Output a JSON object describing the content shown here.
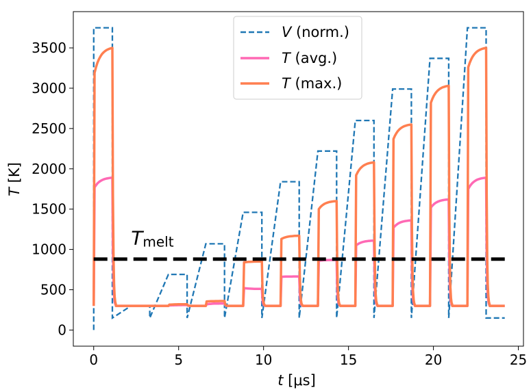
{
  "chart_data": {
    "type": "line",
    "xlabel_var": "t",
    "xlabel_unit": " [μs]",
    "ylabel_var": "T",
    "ylabel_unit": " [K]",
    "xlim": [
      -1.2,
      25.3
    ],
    "ylim": [
      -200,
      3950
    ],
    "xticks": [
      0,
      5,
      10,
      15,
      20,
      25
    ],
    "xtick_labels": [
      "0",
      "5",
      "10",
      "15",
      "20",
      "25"
    ],
    "yticks": [
      0,
      500,
      1000,
      1500,
      2000,
      2500,
      3000,
      3500
    ],
    "ytick_labels": [
      "0",
      "500",
      "1000",
      "1500",
      "2000",
      "2500",
      "3000",
      "3500"
    ],
    "annotation": {
      "main": "T",
      "sub": "melt",
      "x": 2.2,
      "y": 1060
    },
    "melt_line": {
      "y": 880,
      "x_start": 0,
      "x_end": 24.2,
      "color": "#000000"
    },
    "pulses": [
      {
        "start": 0.0,
        "end": 1.1,
        "v": 3750,
        "t_avg_start": 1770,
        "t_avg_end": 1890,
        "t_max_start": 3190,
        "t_max_end": 3500
      },
      {
        "start": 2.2,
        "end": 3.3,
        "v": 300,
        "t_avg_start": 300,
        "t_avg_end": 300,
        "t_max_start": 300,
        "t_max_end": 300
      },
      {
        "start": 4.4,
        "end": 5.5,
        "v": 690,
        "t_avg_start": 305,
        "t_avg_end": 310,
        "t_max_start": 315,
        "t_max_end": 320
      },
      {
        "start": 6.6,
        "end": 7.7,
        "v": 1070,
        "t_avg_start": 320,
        "t_avg_end": 330,
        "t_max_start": 355,
        "t_max_end": 360
      },
      {
        "start": 8.8,
        "end": 9.9,
        "v": 1460,
        "t_avg_start": 520,
        "t_avg_end": 510,
        "t_max_start": 840,
        "t_max_end": 850
      },
      {
        "start": 11.0,
        "end": 12.1,
        "v": 1840,
        "t_avg_start": 660,
        "t_avg_end": 665,
        "t_max_start": 1130,
        "t_max_end": 1170
      },
      {
        "start": 13.2,
        "end": 14.3,
        "v": 2220,
        "t_avg_start": 860,
        "t_avg_end": 870,
        "t_max_start": 1500,
        "t_max_end": 1600
      },
      {
        "start": 15.4,
        "end": 16.5,
        "v": 2600,
        "t_avg_start": 1050,
        "t_avg_end": 1110,
        "t_max_start": 1920,
        "t_max_end": 2080
      },
      {
        "start": 17.6,
        "end": 18.7,
        "v": 2990,
        "t_avg_start": 1270,
        "t_avg_end": 1360,
        "t_max_start": 2370,
        "t_max_end": 2550
      },
      {
        "start": 19.8,
        "end": 20.9,
        "v": 3370,
        "t_avg_start": 1520,
        "t_avg_end": 1620,
        "t_max_start": 2820,
        "t_max_end": 3030
      },
      {
        "start": 22.0,
        "end": 23.1,
        "v": 3750,
        "t_avg_start": 1750,
        "t_avg_end": 1890,
        "t_max_start": 3260,
        "t_max_end": 3500
      }
    ],
    "baseline": {
      "v_off": 150,
      "t_off": 300,
      "x_end": 24.2
    },
    "series": [
      {
        "name": "V (norm.)",
        "var": "V",
        "rest": " (norm.)",
        "color": "#1f77b4",
        "style": "dashed"
      },
      {
        "name": "T (avg.)",
        "var": "T",
        "rest": " (avg.)",
        "color": "#ff69b4",
        "style": "solid"
      },
      {
        "name": "T (max.)",
        "var": "T",
        "rest": " (max.)",
        "color": "#ff7f50",
        "style": "solid"
      }
    ],
    "legend_position": "upper-center"
  }
}
